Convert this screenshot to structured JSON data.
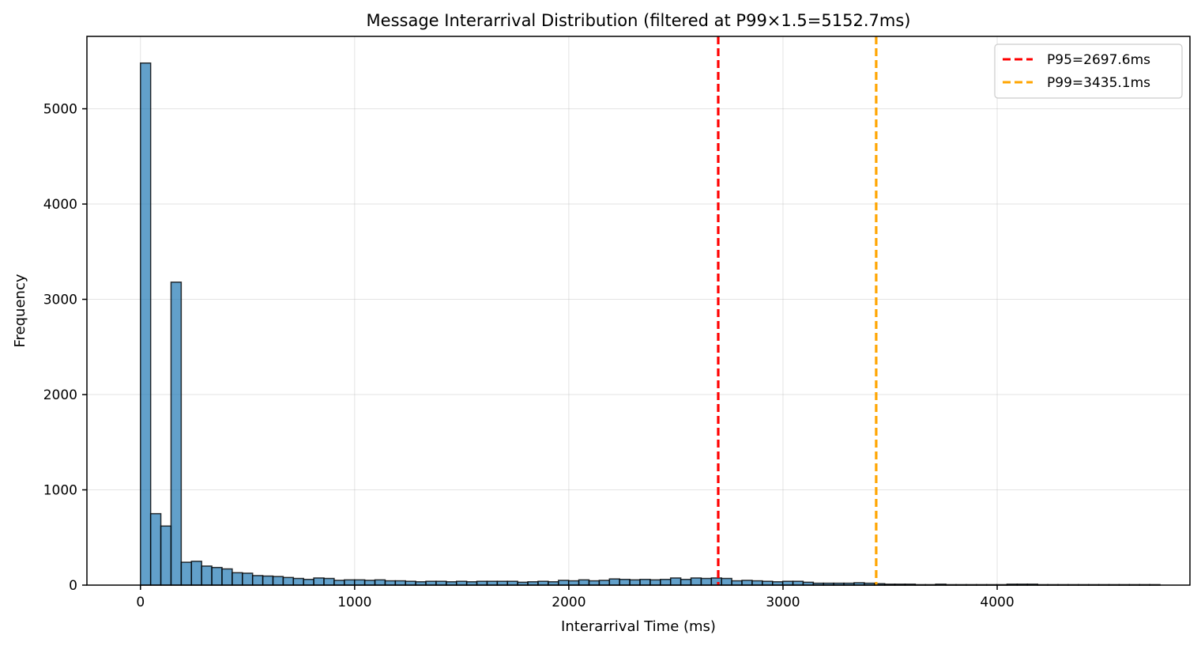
{
  "chart_data": {
    "type": "bar",
    "title": "Message Interarrival Distribution (filtered at P99×1.5=5152.7ms)",
    "xlabel": "Interarrival Time (ms)",
    "ylabel": "Frequency",
    "xlim": [
      -250,
      4900
    ],
    "ylim": [
      0,
      5760
    ],
    "xticks": [
      0,
      1000,
      2000,
      3000,
      4000
    ],
    "yticks": [
      0,
      1000,
      2000,
      3000,
      4000,
      5000
    ],
    "grid": true,
    "legend_position": "top-right",
    "bin_start": 0,
    "bin_width": 47.6,
    "bar_color": "#1f77b4",
    "counts": [
      5480,
      750,
      620,
      3180,
      240,
      250,
      200,
      185,
      170,
      130,
      125,
      100,
      95,
      90,
      80,
      70,
      60,
      75,
      70,
      50,
      55,
      55,
      50,
      55,
      45,
      45,
      40,
      35,
      40,
      40,
      35,
      40,
      35,
      40,
      40,
      40,
      40,
      30,
      35,
      40,
      35,
      50,
      45,
      55,
      45,
      50,
      65,
      60,
      55,
      60,
      55,
      60,
      75,
      60,
      75,
      70,
      75,
      70,
      45,
      50,
      45,
      40,
      35,
      40,
      40,
      30,
      20,
      20,
      20,
      20,
      25,
      20,
      15,
      10,
      10,
      10,
      5,
      5,
      10,
      5,
      5,
      5,
      5,
      5,
      5,
      10,
      10,
      10,
      5,
      5,
      5,
      5,
      5,
      5,
      5,
      5,
      5,
      5,
      5,
      5
    ],
    "reference_lines": [
      {
        "label": "P95=2697.6ms",
        "x": 2697.6,
        "color": "#ff0000"
      },
      {
        "label": "P99=3435.1ms",
        "x": 3435.1,
        "color": "#ffa500"
      }
    ]
  }
}
